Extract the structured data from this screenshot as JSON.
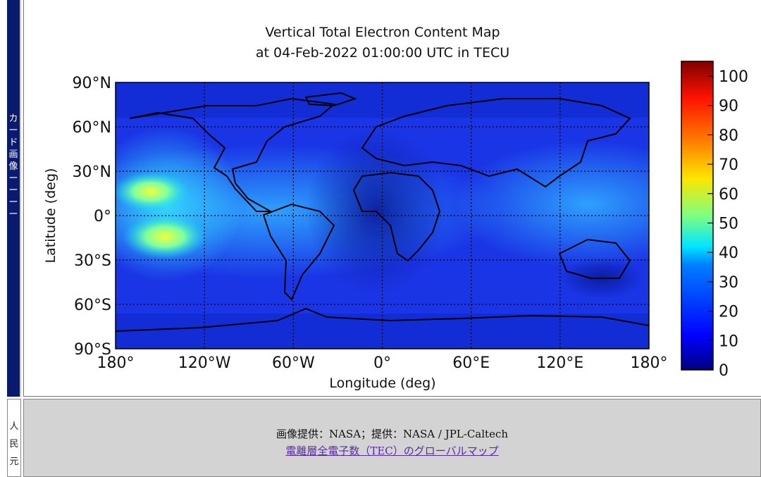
{
  "sidebar": {
    "tab1_label": "カード画像ーーーー",
    "tab2_label": "人民元"
  },
  "map": {
    "title_line1": "Vertical Total Electron Content Map",
    "title_line2": "at 04-Feb-2022 01:00:00 UTC in TECU",
    "xlabel": "Longitude (deg)",
    "ylabel": "Latitude (deg)",
    "lon_ticks": [
      "180°",
      "120°W",
      "60°W",
      "0°",
      "60°E",
      "120°E",
      "180°"
    ],
    "lat_ticks": [
      "90°N",
      "60°N",
      "30°N",
      "0°",
      "30°S",
      "60°S",
      "90°S"
    ],
    "colorbar_ticks": [
      "100",
      "90",
      "80",
      "70",
      "60",
      "50",
      "40",
      "30",
      "20",
      "10",
      "0"
    ],
    "colormap": [
      "#00007f",
      "#0000ff",
      "#007fff",
      "#00e5ff",
      "#7fff7f",
      "#ffe500",
      "#ff7f00",
      "#ff1300",
      "#7f0000"
    ],
    "ocean_color": "#1a3be8"
  },
  "caption": {
    "credit": "画像提供：NASA；提供：NASA / JPL-Caltech",
    "link_text": "電離層全電子数（TEC）のグローバルマップ"
  }
}
